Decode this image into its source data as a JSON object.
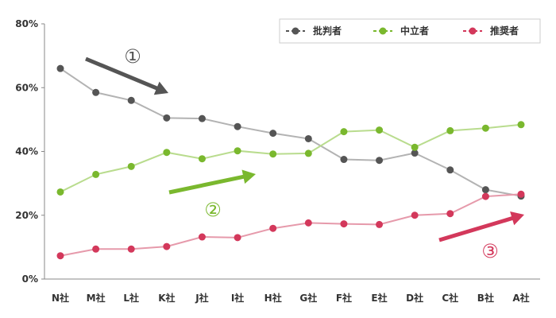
{
  "chart_data": {
    "type": "line",
    "categories": [
      "N社",
      "M社",
      "L社",
      "K社",
      "J社",
      "I社",
      "H社",
      "G社",
      "F社",
      "E社",
      "D社",
      "C社",
      "B社",
      "A社"
    ],
    "series": [
      {
        "name": "批判者",
        "color": "#555555",
        "line_color": "#b3b3b3",
        "values": [
          66,
          58.5,
          56,
          50.5,
          50.3,
          47.8,
          45.7,
          44,
          37.5,
          37.2,
          39.5,
          34.2,
          28,
          26
        ]
      },
      {
        "name": "中立者",
        "color": "#7ab82e",
        "line_color": "#b9dc8e",
        "values": [
          27.3,
          32.8,
          35.3,
          39.7,
          37.7,
          40.2,
          39.2,
          39.4,
          46.2,
          46.7,
          41.3,
          46.5,
          47.3,
          48.4
        ]
      },
      {
        "name": "推奨者",
        "color": "#d3385b",
        "line_color": "#e69aab",
        "values": [
          7.3,
          9.4,
          9.4,
          10.2,
          13.2,
          13,
          15.9,
          17.6,
          17.3,
          17.1,
          20,
          20.5,
          25.9,
          26.6
        ]
      }
    ],
    "y_ticks": [
      "0%",
      "20%",
      "40%",
      "60%",
      "80%"
    ],
    "ylim": [
      0,
      80
    ],
    "legend_position": "top-right",
    "annotations": [
      {
        "label": "①",
        "color": "#555555"
      },
      {
        "label": "②",
        "color": "#7ab82e"
      },
      {
        "label": "③",
        "color": "#d3385b"
      }
    ]
  }
}
